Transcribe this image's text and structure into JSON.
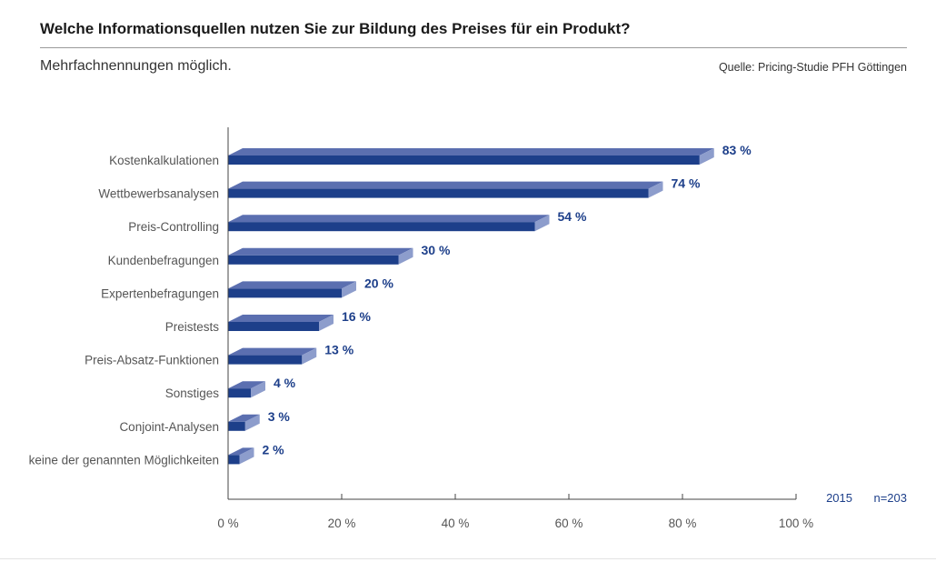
{
  "header": {
    "title": "Welche Informationsquellen nutzen Sie zur Bildung des Preises für ein Produkt?",
    "subtitle": "Mehrfachnennungen möglich.",
    "source": "Quelle: Pricing-Studie PFH Göttingen"
  },
  "footer_note": {
    "year": "2015",
    "n": "n=203"
  },
  "colors": {
    "bar_front": "#1d3f8a",
    "bar_top": "#5b6fb0",
    "bar_side": "#8d9dcc",
    "label": "#1d3f8a",
    "axis": "#555555"
  },
  "chart_data": {
    "type": "bar",
    "orientation": "horizontal",
    "categories": [
      "Kostenkalkulationen",
      "Wettbewerbsanalysen",
      "Preis-Controlling",
      "Kundenbefragungen",
      "Expertenbefragungen",
      "Preistests",
      "Preis-Absatz-Funktionen",
      "Sonstiges",
      "Conjoint-Analysen",
      "keine der genannten Möglichkeiten"
    ],
    "values": [
      83,
      74,
      54,
      30,
      20,
      16,
      13,
      4,
      3,
      2
    ],
    "value_labels": [
      "83 %",
      "74 %",
      "54 %",
      "30 %",
      "20 %",
      "16 %",
      "13 %",
      "4 %",
      "3 %",
      "2 %"
    ],
    "xlim": [
      0,
      100
    ],
    "x_ticks": [
      0,
      20,
      40,
      60,
      80,
      100
    ],
    "x_tick_labels": [
      "0 %",
      "20 %",
      "40 %",
      "60 %",
      "80 %",
      "100 %"
    ],
    "grid": false,
    "style": "3d"
  }
}
